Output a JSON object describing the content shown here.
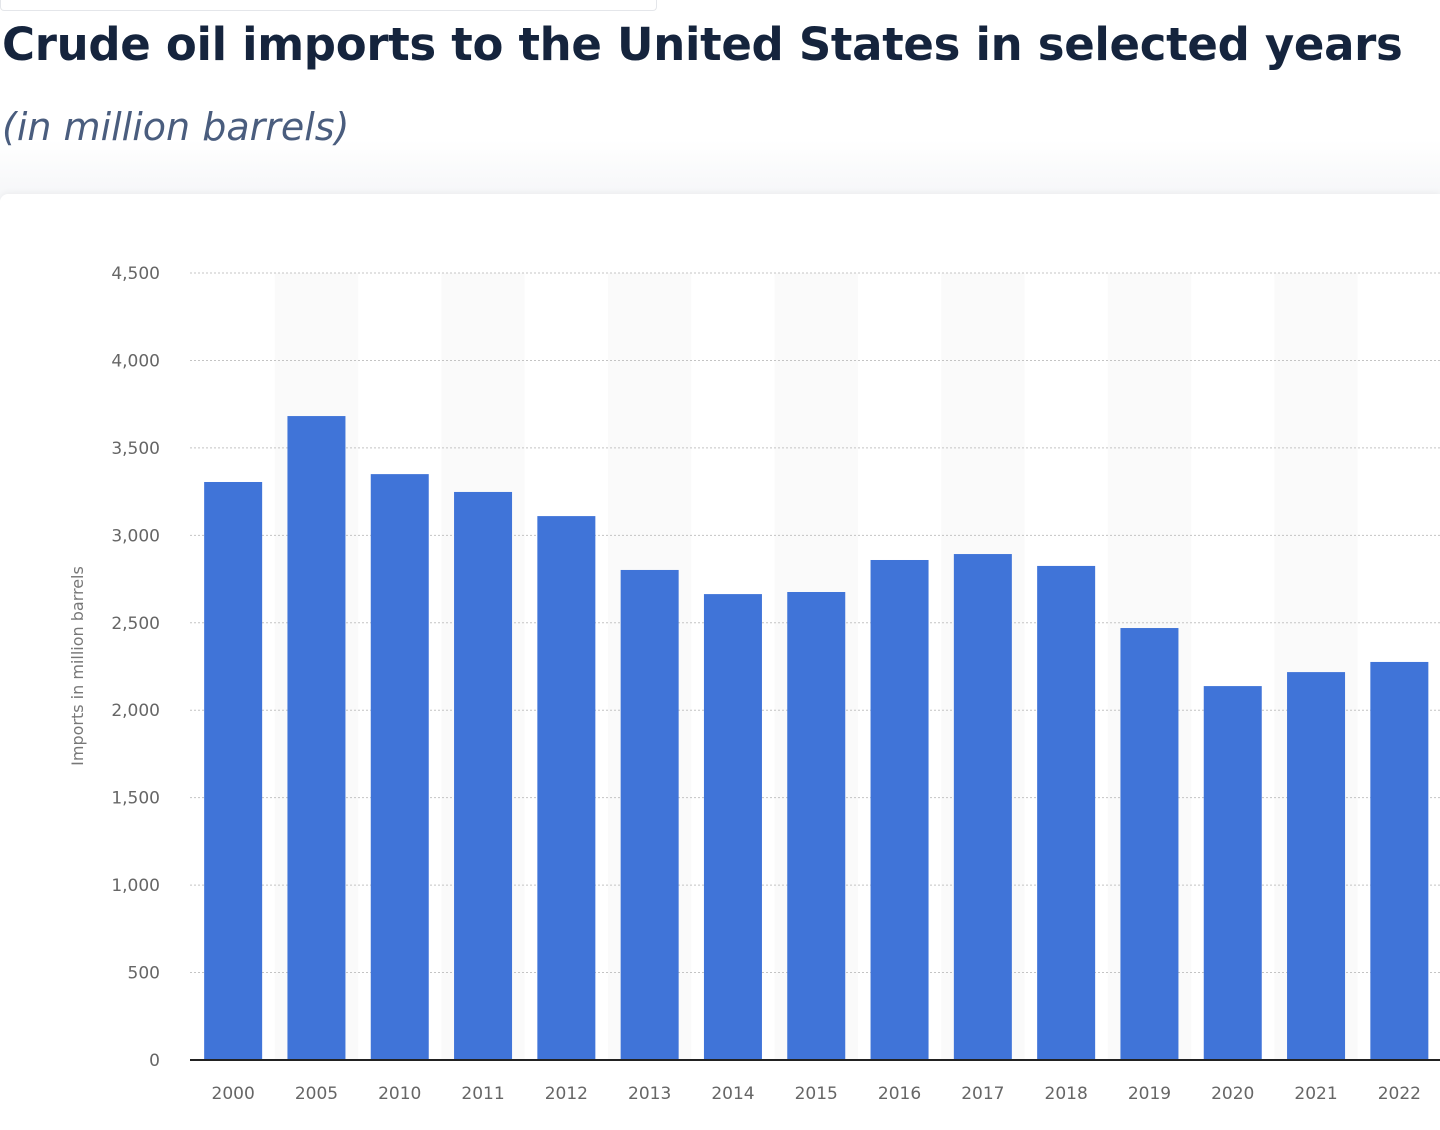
{
  "title": "Crude oil imports to the United States in selected years",
  "subtitle": "(in million barrels)",
  "chart_data": {
    "type": "bar",
    "title": "Crude oil imports to the United States in selected years",
    "subtitle": "(in million barrels)",
    "xlabel": "",
    "ylabel": "Imports in million barrels",
    "categories": [
      "2000",
      "2005",
      "2010",
      "2011",
      "2012",
      "2013",
      "2014",
      "2015",
      "2016",
      "2017",
      "2018",
      "2019",
      "2020",
      "2021",
      "2022"
    ],
    "values": [
      3305,
      3682,
      3350,
      3248,
      3110,
      2802,
      2664,
      2676,
      2859,
      2893,
      2825,
      2470,
      2138,
      2218,
      2276
    ],
    "ylim": [
      0,
      4500
    ],
    "yticks": [
      0,
      500,
      1000,
      1500,
      2000,
      2500,
      3000,
      3500,
      4000,
      4500
    ],
    "ytick_labels": [
      "0",
      "500",
      "1,000",
      "1,500",
      "2,000",
      "2,500",
      "3,000",
      "3,500",
      "4,000",
      "4,500"
    ],
    "grid": true,
    "bar_color": "#4074d8"
  }
}
